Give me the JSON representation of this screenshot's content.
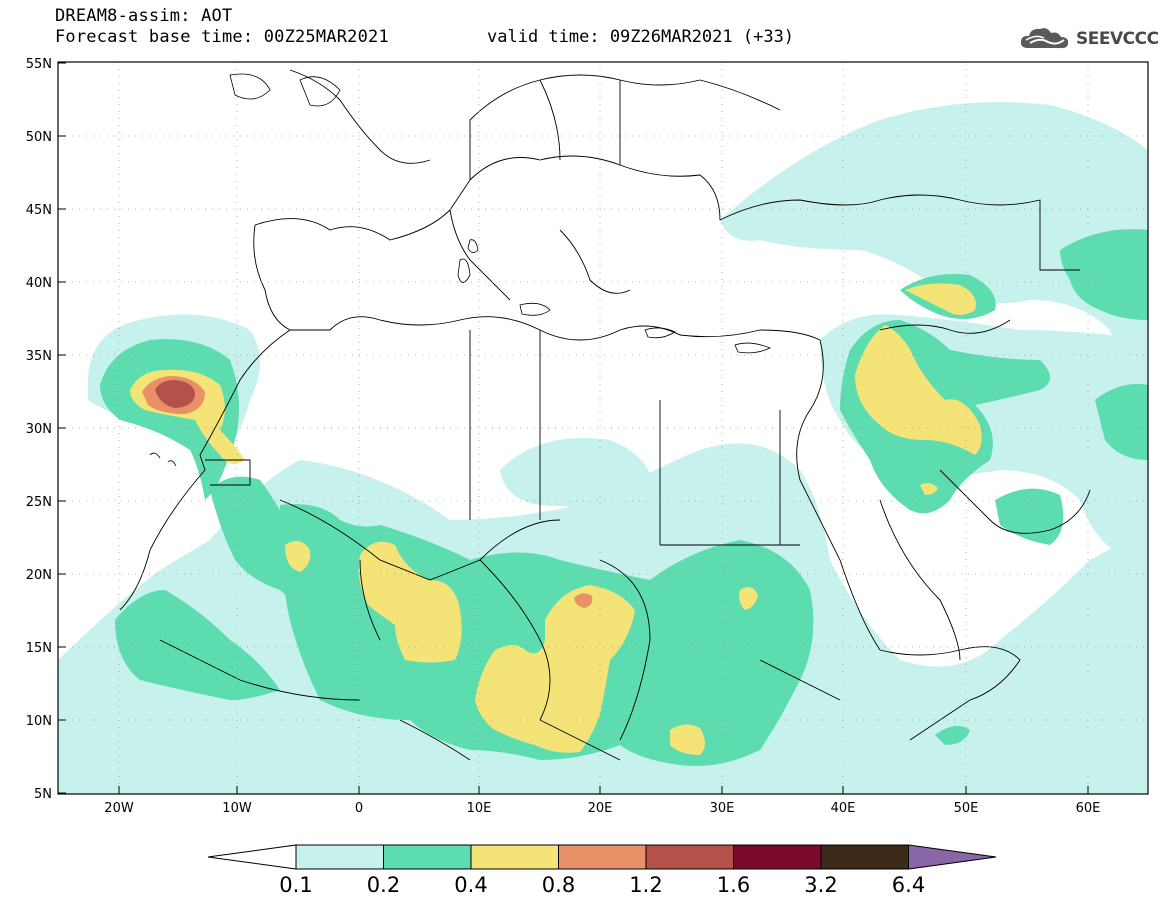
{
  "header": {
    "model": "DREAM8-assim: AOT",
    "base_time": "Forecast base time: 00Z25MAR2021",
    "valid_time": "valid time: 09Z26MAR2021 (+33)",
    "logo_text": "SEEVCCC"
  },
  "axes": {
    "lat_ticks": [
      "55N",
      "50N",
      "45N",
      "40N",
      "35N",
      "30N",
      "25N",
      "20N",
      "15N",
      "10N",
      "5N"
    ],
    "lon_ticks": [
      "20W",
      "10W",
      "0",
      "10E",
      "20E",
      "30E",
      "40E",
      "50E",
      "60E"
    ]
  },
  "colorbar": {
    "labels": [
      "0.1",
      "0.2",
      "0.4",
      "0.8",
      "1.2",
      "1.6",
      "3.2",
      "6.4"
    ],
    "colors": [
      "#c6f1ec",
      "#5cdcaf",
      "#f4e478",
      "#e89068",
      "#b4524a",
      "#7a0a2a",
      "#3e2a18",
      "#8866a8"
    ],
    "under_color": "#ffffff"
  },
  "colors": {
    "level1": "#c6f1ec",
    "level2": "#5cdcaf",
    "level3": "#f4e478",
    "level4": "#e89068",
    "level5": "#b4524a",
    "border": "#000000"
  }
}
